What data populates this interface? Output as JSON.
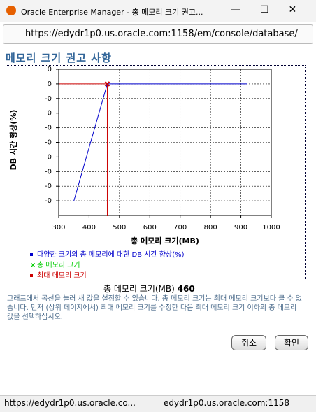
{
  "window": {
    "title": "Oracle Enterprise Manager - 총 메모리 크기 권고...",
    "url": "https://edydr1p0.us.oracle.com:1158/em/console/database/"
  },
  "heading": "메모리 크기 권고 사항",
  "chart_data": {
    "type": "line",
    "xlabel": "총 메모리 크기(MB)",
    "ylabel": "DB 시간 향상(%)",
    "x": [
      350,
      460,
      920
    ],
    "series": [
      {
        "name": "다양한 크기의 총 메모리에 대한 DB 시간 향상(%)",
        "color": "#0000cc",
        "values": [
          -0.16,
          0,
          0
        ]
      }
    ],
    "current": {
      "name": "총 메모리 크기",
      "color": "#00cc00",
      "x": 460,
      "y": 0
    },
    "max": {
      "name": "최대 메모리 크기",
      "color": "#cc0000",
      "x": 460
    },
    "xlim": [
      300,
      1000
    ],
    "xticks": [
      300,
      400,
      500,
      600,
      700,
      800,
      900,
      1000
    ],
    "ylim": [
      -0.18,
      0.02
    ],
    "yticks": [
      {
        "value": 0.02,
        "label": "0"
      },
      0,
      {
        "value": -0.02,
        "label": "-0"
      },
      {
        "value": -0.04,
        "label": "-0"
      },
      {
        "value": -0.06,
        "label": "-0"
      },
      {
        "value": -0.08,
        "label": "-0"
      },
      {
        "value": -0.1,
        "label": "-0"
      },
      {
        "value": -0.12,
        "label": "-0"
      },
      {
        "value": -0.14,
        "label": "-0"
      },
      {
        "value": -0.16,
        "label": "-0"
      }
    ],
    "grid": true
  },
  "summary": {
    "label": "총 메모리 크기(MB)",
    "value": 460
  },
  "help": "그래프에서 곡선을 눌러 새 값을 설정할 수 있습니다. 총 메모리 크기는 최대 메모리 크기보다 클 수 없습니다. 먼저 (상위 페이지에서) 최대 메모리 크기를 수정한 다음 최대 메모리 크기 이하의 총 메모리 값을 선택하십시오.",
  "buttons": [
    "취소",
    "확인"
  ],
  "status": {
    "left": "https://edydr1p0.us.oracle.co...",
    "right": "edydr1p0.us.oracle.com:1158"
  }
}
